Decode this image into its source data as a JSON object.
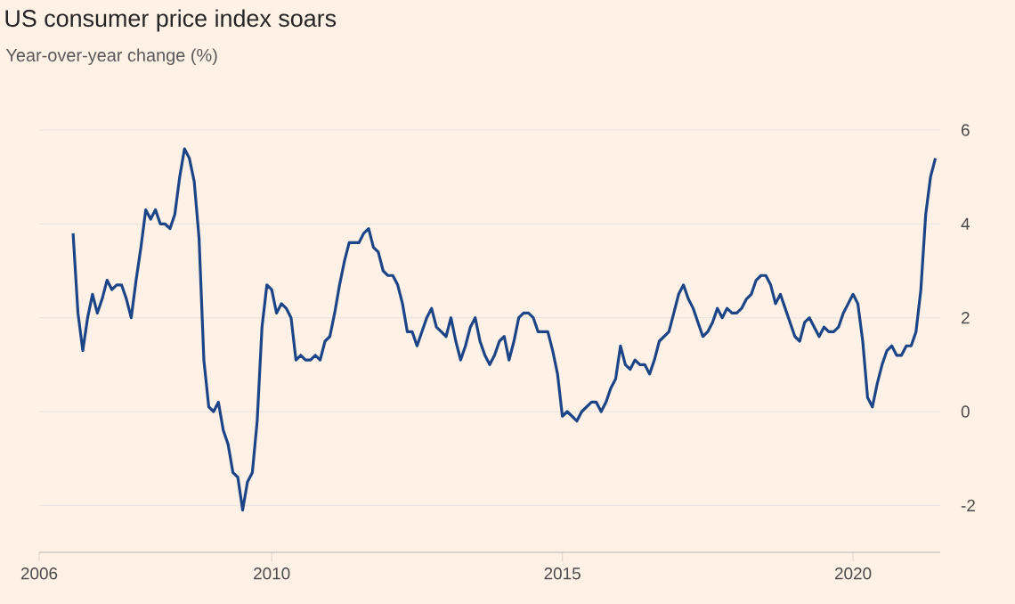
{
  "chart_data": {
    "type": "line",
    "title": "US consumer price index soars",
    "subtitle": "Year-over-year change (%)",
    "color": "#1c4587",
    "x": [
      2006.583,
      2006.667,
      2006.75,
      2006.833,
      2006.917,
      2007.0,
      2007.083,
      2007.167,
      2007.25,
      2007.333,
      2007.417,
      2007.5,
      2007.583,
      2007.667,
      2007.75,
      2007.833,
      2007.917,
      2008.0,
      2008.083,
      2008.167,
      2008.25,
      2008.333,
      2008.417,
      2008.5,
      2008.583,
      2008.667,
      2008.75,
      2008.833,
      2008.917,
      2009.0,
      2009.083,
      2009.167,
      2009.25,
      2009.333,
      2009.417,
      2009.5,
      2009.583,
      2009.667,
      2009.75,
      2009.833,
      2009.917,
      2010.0,
      2010.083,
      2010.167,
      2010.25,
      2010.333,
      2010.417,
      2010.5,
      2010.583,
      2010.667,
      2010.75,
      2010.833,
      2010.917,
      2011.0,
      2011.083,
      2011.167,
      2011.25,
      2011.333,
      2011.417,
      2011.5,
      2011.583,
      2011.667,
      2011.75,
      2011.833,
      2011.917,
      2012.0,
      2012.083,
      2012.167,
      2012.25,
      2012.333,
      2012.417,
      2012.5,
      2012.583,
      2012.667,
      2012.75,
      2012.833,
      2012.917,
      2013.0,
      2013.083,
      2013.167,
      2013.25,
      2013.333,
      2013.417,
      2013.5,
      2013.583,
      2013.667,
      2013.75,
      2013.833,
      2013.917,
      2014.0,
      2014.083,
      2014.167,
      2014.25,
      2014.333,
      2014.417,
      2014.5,
      2014.583,
      2014.667,
      2014.75,
      2014.833,
      2014.917,
      2015.0,
      2015.083,
      2015.167,
      2015.25,
      2015.333,
      2015.417,
      2015.5,
      2015.583,
      2015.667,
      2015.75,
      2015.833,
      2015.917,
      2016.0,
      2016.083,
      2016.167,
      2016.25,
      2016.333,
      2016.417,
      2016.5,
      2016.583,
      2016.667,
      2016.75,
      2016.833,
      2016.917,
      2017.0,
      2017.083,
      2017.167,
      2017.25,
      2017.333,
      2017.417,
      2017.5,
      2017.583,
      2017.667,
      2017.75,
      2017.833,
      2017.917,
      2018.0,
      2018.083,
      2018.167,
      2018.25,
      2018.333,
      2018.417,
      2018.5,
      2018.583,
      2018.667,
      2018.75,
      2018.833,
      2018.917,
      2019.0,
      2019.083,
      2019.167,
      2019.25,
      2019.333,
      2019.417,
      2019.5,
      2019.583,
      2019.667,
      2019.75,
      2019.833,
      2019.917,
      2020.0,
      2020.083,
      2020.167,
      2020.25,
      2020.333,
      2020.417,
      2020.5,
      2020.583,
      2020.667,
      2020.75,
      2020.833,
      2020.917,
      2021.0,
      2021.083,
      2021.167,
      2021.25,
      2021.333,
      2021.417
    ],
    "values": [
      3.8,
      2.1,
      1.3,
      2.0,
      2.5,
      2.1,
      2.4,
      2.8,
      2.6,
      2.7,
      2.7,
      2.4,
      2.0,
      2.8,
      3.5,
      4.3,
      4.1,
      4.3,
      4.0,
      4.0,
      3.9,
      4.2,
      5.0,
      5.6,
      5.4,
      4.9,
      3.7,
      1.1,
      0.1,
      0.0,
      0.2,
      -0.4,
      -0.7,
      -1.3,
      -1.4,
      -2.1,
      -1.5,
      -1.3,
      -0.2,
      1.8,
      2.7,
      2.6,
      2.1,
      2.3,
      2.2,
      2.0,
      1.1,
      1.2,
      1.1,
      1.1,
      1.2,
      1.1,
      1.5,
      1.6,
      2.1,
      2.7,
      3.2,
      3.6,
      3.6,
      3.6,
      3.8,
      3.9,
      3.5,
      3.4,
      3.0,
      2.9,
      2.9,
      2.7,
      2.3,
      1.7,
      1.7,
      1.4,
      1.7,
      2.0,
      2.2,
      1.8,
      1.7,
      1.6,
      2.0,
      1.5,
      1.1,
      1.4,
      1.8,
      2.0,
      1.5,
      1.2,
      1.0,
      1.2,
      1.5,
      1.6,
      1.1,
      1.5,
      2.0,
      2.1,
      2.1,
      2.0,
      1.7,
      1.7,
      1.7,
      1.3,
      0.8,
      -0.1,
      0.0,
      -0.1,
      -0.2,
      0.0,
      0.1,
      0.2,
      0.2,
      0.0,
      0.2,
      0.5,
      0.7,
      1.4,
      1.0,
      0.9,
      1.1,
      1.0,
      1.0,
      0.8,
      1.1,
      1.5,
      1.6,
      1.7,
      2.1,
      2.5,
      2.7,
      2.4,
      2.2,
      1.9,
      1.6,
      1.7,
      1.9,
      2.2,
      2.0,
      2.2,
      2.1,
      2.1,
      2.2,
      2.4,
      2.5,
      2.8,
      2.9,
      2.9,
      2.7,
      2.3,
      2.5,
      2.2,
      1.9,
      1.6,
      1.5,
      1.9,
      2.0,
      1.8,
      1.6,
      1.8,
      1.7,
      1.7,
      1.8,
      2.1,
      2.3,
      2.5,
      2.3,
      1.5,
      0.3,
      0.1,
      0.6,
      1.0,
      1.3,
      1.4,
      1.2,
      1.2,
      1.4,
      1.4,
      1.7,
      2.6,
      4.2,
      5.0,
      5.4
    ],
    "xlim": [
      2006,
      2021.5
    ],
    "ylim": [
      -3,
      6
    ],
    "xticks": [
      2006,
      2010,
      2015,
      2020
    ],
    "yticks": [
      -2,
      0,
      2,
      4,
      6
    ],
    "grid": "y"
  }
}
